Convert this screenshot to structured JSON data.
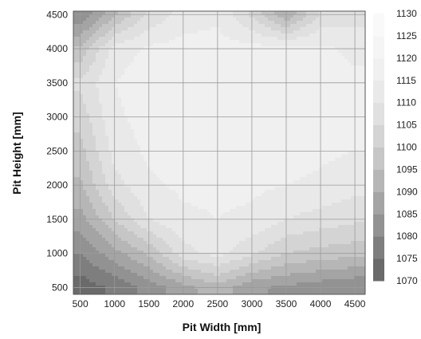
{
  "chart_data": {
    "type": "heatmap",
    "subtype": "filled-contour",
    "xlabel": "Pit Width  [mm]",
    "ylabel": "Pit Height [mm]",
    "xlim": [
      400,
      4650
    ],
    "ylim": [
      400,
      4550
    ],
    "xticks": [
      500,
      1000,
      1500,
      2000,
      2500,
      3000,
      3500,
      4000,
      4500
    ],
    "yticks": [
      500,
      1000,
      1500,
      2000,
      2500,
      3000,
      3500,
      4000,
      4500
    ],
    "colorbar": {
      "min": 1070,
      "max": 1130,
      "ticks": [
        1070,
        1075,
        1080,
        1085,
        1090,
        1095,
        1100,
        1105,
        1110,
        1115,
        1120,
        1125,
        1130
      ],
      "colors": [
        "#6a6a6a",
        "#7e7e7e",
        "#929292",
        "#a4a4a4",
        "#b6b6b6",
        "#c6c6c6",
        "#d4d4d4",
        "#e0e0e0",
        "#e9e9e9",
        "#f0f0f0",
        "#f5f5f5",
        "#f9f9f9"
      ]
    },
    "grid": true,
    "field_samples": {
      "note_x": [
        500,
        1000,
        1500,
        2000,
        2500,
        3000,
        3500,
        4000,
        4500
      ],
      "note_y": [
        500,
        1000,
        1500,
        2000,
        2500,
        3000,
        3500,
        4000,
        4500
      ],
      "z": [
        [
          1072,
          1076,
          1082,
          1088,
          1093,
          1086,
          1084,
          1082,
          1080
        ],
        [
          1080,
          1088,
          1096,
          1108,
          1112,
          1106,
          1100,
          1098,
          1097
        ],
        [
          1088,
          1100,
          1110,
          1114,
          1115,
          1114,
          1110,
          1108,
          1106
        ],
        [
          1094,
          1108,
          1114,
          1116,
          1116,
          1116,
          1115,
          1114,
          1112
        ],
        [
          1098,
          1112,
          1116,
          1117,
          1117,
          1117,
          1117,
          1116,
          1115
        ],
        [
          1102,
          1114,
          1117,
          1118,
          1118,
          1118,
          1118,
          1117,
          1116
        ],
        [
          1106,
          1115,
          1118,
          1118,
          1118,
          1118,
          1118,
          1117,
          1116
        ],
        [
          1096,
          1112,
          1116,
          1117,
          1117,
          1117,
          1117,
          1116,
          1114
        ],
        [
          1080,
          1094,
          1106,
          1112,
          1114,
          1104,
          1090,
          1106,
          1108
        ]
      ]
    }
  }
}
